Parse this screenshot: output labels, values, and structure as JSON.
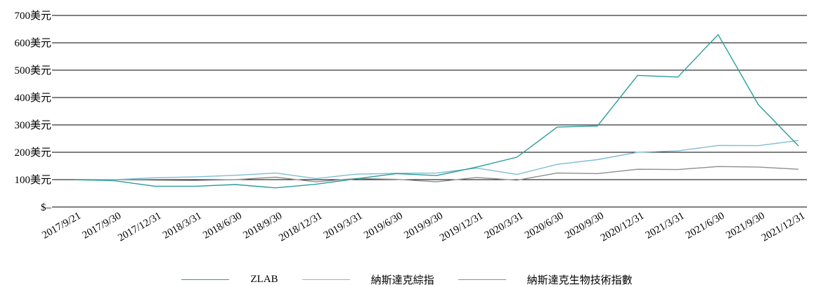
{
  "chart_data": {
    "type": "line",
    "x": [
      "2017/9/21",
      "2017/9/30",
      "2017/12/31",
      "2018/3/31",
      "2018/6/30",
      "2018/9/30",
      "2018/12/31",
      "2019/3/31",
      "2019/6/30",
      "2019/9/30",
      "2019/12/31",
      "2020/3/31",
      "2020/6/30",
      "2020/9/30",
      "2020/12/31",
      "2021/3/31",
      "2021/6/30",
      "2021/9/30",
      "2021/12/31"
    ],
    "ylim": [
      0,
      700
    ],
    "yticks": [
      {
        "value": 0,
        "label": "$–"
      },
      {
        "value": 100,
        "label": "100美元"
      },
      {
        "value": 200,
        "label": "200美元"
      },
      {
        "value": 300,
        "label": "300美元"
      },
      {
        "value": 400,
        "label": "400美元"
      },
      {
        "value": 500,
        "label": "500美元"
      },
      {
        "value": 600,
        "label": "600美元"
      },
      {
        "value": 700,
        "label": "700美元"
      }
    ],
    "grid": "horizontal",
    "legend_position": "bottom-center",
    "series": [
      {
        "name": "ZLAB",
        "color": "#2a9d9c",
        "values": [
          100,
          96,
          76,
          76,
          82,
          70,
          83,
          103,
          122,
          115,
          146,
          182,
          292,
          296,
          481,
          475,
          630,
          374,
          223
        ]
      },
      {
        "name": "納斯達克綜指",
        "color": "#7fbcd4",
        "values": [
          100,
          100,
          107,
          110,
          116,
          124,
          104,
          120,
          123,
          124,
          142,
          119,
          156,
          173,
          200,
          205,
          225,
          224,
          243
        ]
      },
      {
        "name": "納斯達克生物技術指數",
        "color": "#8e8e8e",
        "values": [
          100,
          100,
          98,
          97,
          100,
          109,
          92,
          104,
          101,
          92,
          108,
          98,
          124,
          122,
          138,
          137,
          148,
          146,
          138
        ]
      }
    ]
  }
}
